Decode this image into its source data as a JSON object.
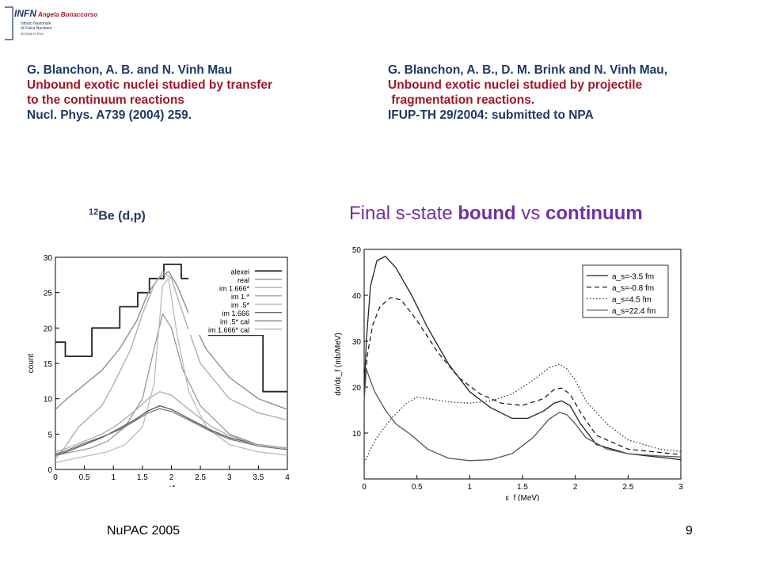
{
  "logo": {
    "brand": "INFN",
    "author": "Angela Bonaccorso",
    "institute_line1": "Istituto Nazionale",
    "institute_line2": "di Fisica Nucleare",
    "institute_line3": "SEZIONE DI PISA"
  },
  "ref_left": {
    "authors": "G. Blanchon, A. B. and N. Vinh Mau",
    "title1": "Unbound exotic nuclei studied by transfer",
    "title2": "to the continuum reactions",
    "journal": "Nucl. Phys. A739 (2004) 259."
  },
  "ref_right": {
    "authors": "G. Blanchon, A. B., D. M. Brink and N. Vinh Mau,",
    "title1": "Unbound exotic nuclei studied by projectile",
    "title2": " fragmentation reactions.",
    "journal": "IFUP-TH 29/2004: submitted to NPA"
  },
  "label_be": {
    "mass": "12",
    "text": "Be (d,p)"
  },
  "headline": {
    "part1": "Final s-state ",
    "bold1": "bound",
    "part2": " vs ",
    "bold2": "continuum"
  },
  "footer": {
    "left": "NuPAC 2005",
    "right": "9"
  },
  "chart_data": [
    {
      "type": "line",
      "xlabel": "ef",
      "ylabel": "count",
      "xlim": [
        0,
        4
      ],
      "ylim": [
        0,
        30
      ],
      "xticks": [
        "0",
        "0.5",
        "1",
        "1.5",
        "2",
        "2.5",
        "3",
        "3.5",
        "4"
      ],
      "yticks": [
        "0",
        "5",
        "10",
        "15",
        "20",
        "25",
        "30"
      ],
      "legend_position": "top-right",
      "series": [
        {
          "name": "alexei",
          "style": "step",
          "color": "#222222",
          "x": [
            0,
            0.17,
            0.17,
            0.63,
            0.63,
            1.11,
            1.11,
            1.42,
            1.42,
            1.62,
            1.62,
            1.87,
            1.87,
            2.17,
            2.17,
            2.64,
            2.64,
            3.58,
            3.58,
            4.0
          ],
          "y": [
            18,
            18,
            16,
            16,
            20,
            20,
            23,
            23,
            25,
            25,
            27,
            27,
            29,
            29,
            27,
            27,
            19,
            19,
            11,
            11
          ]
        },
        {
          "name": "real",
          "color": "#888888",
          "x": [
            0,
            0.2,
            0.5,
            0.8,
            1.1,
            1.4,
            1.6,
            1.78,
            1.95,
            2.1,
            2.3,
            2.6,
            3.0,
            3.5,
            4.0
          ],
          "y": [
            8.5,
            10,
            12,
            14,
            17,
            21,
            25,
            27,
            28,
            26,
            22,
            17,
            13,
            10,
            8.5
          ]
        },
        {
          "name": "im 1.666*",
          "color": "#aaaaaa",
          "x": [
            0,
            0.15,
            0.4,
            0.6,
            0.8,
            1.0,
            1.3,
            1.5,
            1.7,
            1.85,
            2.0,
            2.2,
            2.5,
            3.0,
            3.5,
            4.0
          ],
          "y": [
            1.5,
            3,
            6,
            7.5,
            9,
            12,
            17,
            22,
            26,
            28,
            27,
            22,
            15,
            10,
            8,
            7
          ]
        },
        {
          "name": "im 1.*",
          "color": "#999999",
          "x": [
            0,
            0.3,
            0.6,
            0.9,
            1.2,
            1.5,
            1.7,
            1.85,
            2.0,
            2.2,
            2.5,
            3.0,
            3.5,
            4.0
          ],
          "y": [
            2,
            2.5,
            3,
            4,
            6,
            10,
            17,
            22,
            20,
            14,
            9,
            5,
            3.5,
            3
          ]
        },
        {
          "name": "im .5*",
          "color": "#bbbbbb",
          "x": [
            0,
            0.3,
            0.6,
            0.9,
            1.2,
            1.5,
            1.7,
            1.85,
            1.95,
            2.1,
            2.3,
            2.6,
            3.0,
            3.5,
            4.0
          ],
          "y": [
            1,
            1.5,
            2,
            2.5,
            3.5,
            6,
            12,
            26,
            27,
            19,
            11,
            6,
            3.5,
            2.5,
            2
          ]
        },
        {
          "name": "im 1.666",
          "color": "#555555",
          "x": [
            0,
            0.2,
            0.5,
            0.8,
            1.1,
            1.4,
            1.6,
            1.8,
            2.0,
            2.3,
            2.7,
            3.0,
            3.5,
            4.0
          ],
          "y": [
            2,
            2.5,
            3.5,
            4.5,
            5.8,
            7.2,
            8.3,
            9,
            8.5,
            7.2,
            5.5,
            4.5,
            3.5,
            3
          ]
        },
        {
          "name": "im .5* cal",
          "color": "#777777",
          "x": [
            0,
            0.2,
            0.5,
            0.8,
            1.1,
            1.4,
            1.6,
            1.8,
            2.0,
            2.3,
            2.7,
            3.0,
            3.5,
            4.0
          ],
          "y": [
            2.2,
            2.7,
            3.7,
            4.6,
            5.6,
            7,
            8,
            8.6,
            8.2,
            7,
            5.3,
            4.3,
            3.3,
            2.8
          ]
        },
        {
          "name": "im 1.666* cal",
          "color": "#aaaaaa",
          "x": [
            0,
            0.2,
            0.5,
            0.8,
            1.1,
            1.4,
            1.6,
            1.8,
            2.0,
            2.3,
            2.7,
            3.0,
            3.5,
            4.0
          ],
          "y": [
            2.5,
            3,
            4,
            5,
            6.5,
            8.5,
            10,
            11,
            10.5,
            8.5,
            6,
            4.8,
            3.5,
            3
          ]
        }
      ]
    },
    {
      "type": "line",
      "xlabel": "ε_f (MeV)",
      "ylabel": "dσ/dε_f (mb/MeV)",
      "xlim": [
        0,
        3
      ],
      "ylim": [
        0,
        50
      ],
      "xticks": [
        "0",
        "0.5",
        "1",
        "1.5",
        "2",
        "2.5",
        "3"
      ],
      "yticks": [
        "10",
        "20",
        "30",
        "40",
        "50"
      ],
      "legend_position": "top-right",
      "series": [
        {
          "name": "a_s=-3.5 fm",
          "dash": "solid",
          "color": "#222222",
          "x": [
            0,
            0.02,
            0.06,
            0.12,
            0.2,
            0.3,
            0.45,
            0.6,
            0.8,
            1.0,
            1.2,
            1.4,
            1.55,
            1.7,
            1.8,
            1.87,
            1.95,
            2.05,
            2.2,
            2.5,
            3.0
          ],
          "y": [
            19,
            30,
            42,
            47.5,
            48.5,
            46,
            40,
            33,
            25,
            19,
            15.5,
            13.2,
            13.2,
            14.8,
            16.5,
            17,
            16,
            12,
            7.5,
            5.5,
            4.2
          ]
        },
        {
          "name": "a_s=-0.8 fm",
          "dash": "dashed",
          "color": "#222222",
          "x": [
            0,
            0.03,
            0.08,
            0.15,
            0.25,
            0.35,
            0.5,
            0.7,
            0.9,
            1.1,
            1.3,
            1.5,
            1.7,
            1.8,
            1.87,
            1.95,
            2.05,
            2.2,
            2.5,
            3.0
          ],
          "y": [
            18,
            27,
            33.5,
            37.5,
            39.5,
            39,
            34.5,
            27.5,
            22,
            18.5,
            16.5,
            16,
            17.5,
            19.5,
            19.8,
            18.5,
            14.5,
            9.5,
            6.5,
            5.3
          ]
        },
        {
          "name": "a_s=4.5 fm",
          "dash": "dotted",
          "color": "#333333",
          "x": [
            0,
            0.05,
            0.12,
            0.25,
            0.4,
            0.5,
            0.6,
            0.8,
            1.0,
            1.2,
            1.4,
            1.6,
            1.75,
            1.85,
            1.92,
            2.0,
            2.1,
            2.3,
            2.5,
            2.8,
            3.0
          ],
          "y": [
            3.5,
            6,
            9,
            13,
            16.5,
            17.8,
            17.5,
            16.8,
            16.5,
            17,
            18.5,
            21.5,
            24.2,
            25,
            24,
            21.5,
            17,
            12,
            8.5,
            6.5,
            6
          ]
        },
        {
          "name": "a_s=22.4 fm",
          "dash": "solid",
          "color": "#555555",
          "x": [
            0,
            0.02,
            0.05,
            0.1,
            0.2,
            0.3,
            0.45,
            0.6,
            0.8,
            1.0,
            1.2,
            1.4,
            1.6,
            1.75,
            1.85,
            1.92,
            2.0,
            2.1,
            2.3,
            2.5,
            2.8,
            3.0
          ],
          "y": [
            17,
            24,
            22,
            19,
            15,
            12,
            9.5,
            6.5,
            4.5,
            4,
            4.2,
            5.5,
            9,
            13,
            14.5,
            14,
            12,
            9,
            6.5,
            5.5,
            5,
            4.8
          ]
        }
      ]
    }
  ]
}
